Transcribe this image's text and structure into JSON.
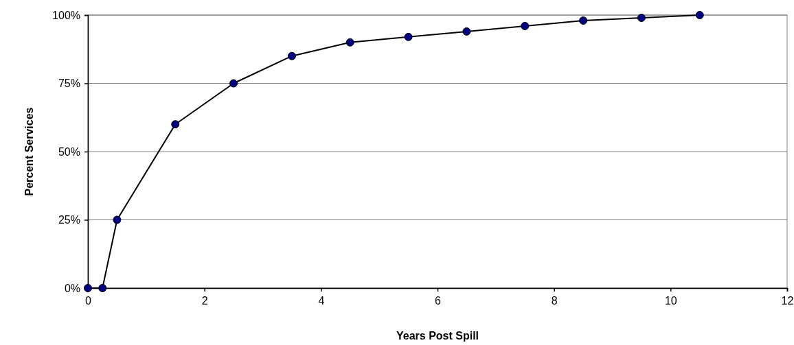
{
  "chart_data": {
    "type": "line",
    "xlabel": "Years Post Spill",
    "ylabel": "Percent Services",
    "x": [
      0,
      0.25,
      0.5,
      1.5,
      2.5,
      3.5,
      4.5,
      5.5,
      6.5,
      7.5,
      8.5,
      9.5,
      10.5
    ],
    "series": [
      {
        "color": "#000080",
        "values": [
          0,
          0,
          25,
          60,
          75,
          85,
          90,
          92,
          94,
          96,
          98,
          99,
          100
        ]
      }
    ],
    "xlim": [
      0,
      12
    ],
    "xticks": [
      0,
      2,
      4,
      6,
      8,
      10,
      12
    ],
    "ylim": [
      0,
      100
    ],
    "yticks": [
      {
        "value": 0,
        "label": "0%"
      },
      {
        "value": 25,
        "label": "25%"
      },
      {
        "value": 50,
        "label": "50%"
      },
      {
        "value": 75,
        "label": "75%"
      },
      {
        "value": 100,
        "label": "100%"
      }
    ],
    "grid": "y",
    "marker": "circle",
    "line_style": "solid"
  }
}
